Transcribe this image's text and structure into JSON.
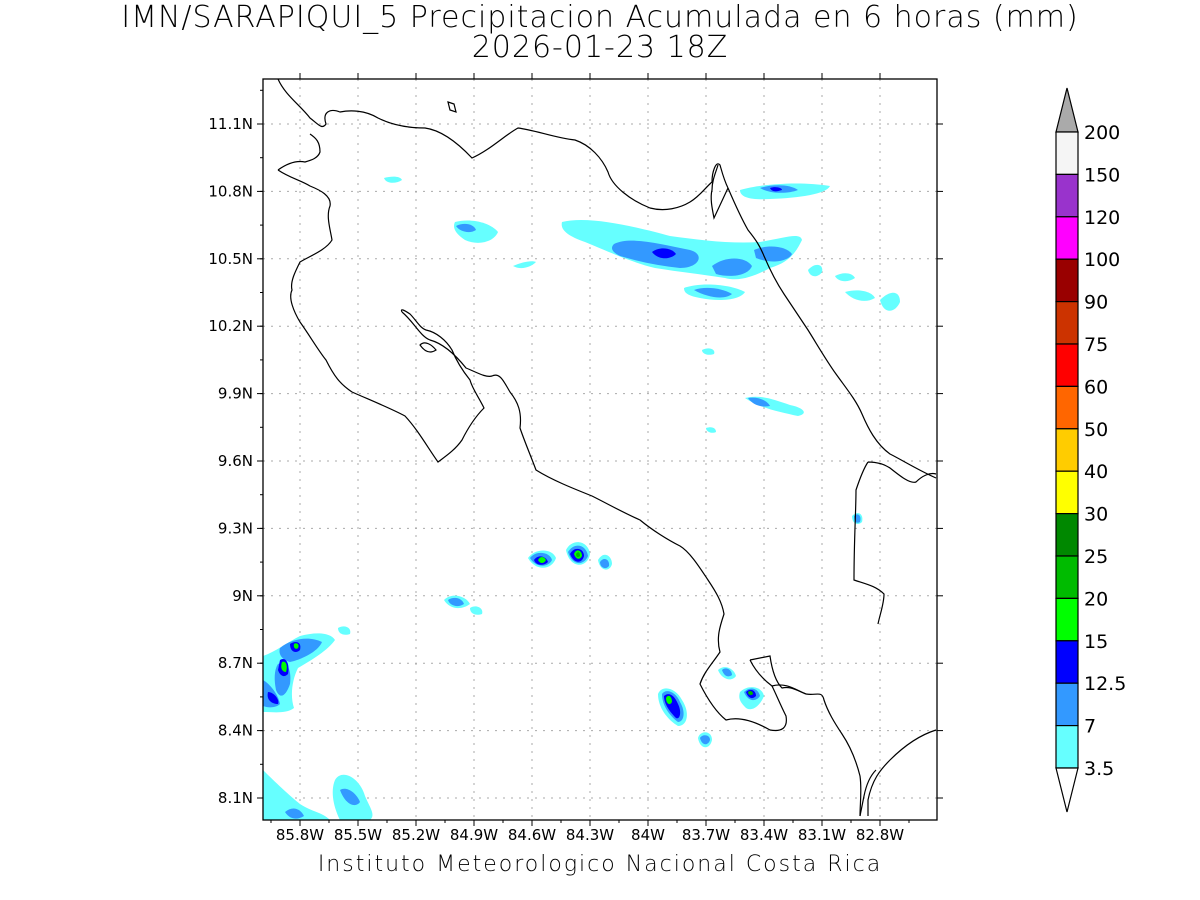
{
  "title_line1": "IMN/SARAPIQUI_5 Precipitacion Acumulada en 6 horas (mm)",
  "title_line2": "2026-01-23 18Z",
  "footer": "Instituto Meteorologico Nacional Costa Rica",
  "lat_ticks": [
    "11.1N",
    "10.8N",
    "10.5N",
    "10.2N",
    "9.9N",
    "9.6N",
    "9.3N",
    "9N",
    "8.7N",
    "8.4N",
    "8.1N"
  ],
  "lon_ticks": [
    "85.8W",
    "85.5W",
    "85.2W",
    "84.9W",
    "84.6W",
    "84.3W",
    "84W",
    "83.7W",
    "83.4W",
    "83.1W",
    "82.8W"
  ],
  "colorbar": {
    "labels": [
      "200",
      "150",
      "120",
      "100",
      "90",
      "75",
      "60",
      "50",
      "40",
      "30",
      "25",
      "20",
      "15",
      "12.5",
      "7",
      "3.5"
    ],
    "colors": [
      "#f5f5f5",
      "#9933cc",
      "#ff00ff",
      "#990000",
      "#cc3300",
      "#ff0000",
      "#ff6600",
      "#ffcc00",
      "#ffff00",
      "#008800",
      "#00bb00",
      "#00ff00",
      "#0000ff",
      "#3399ff",
      "#66ffff"
    ],
    "over_color": "#aaaaaa",
    "under_color": "#ffffff"
  },
  "precip_colors": {
    "c35": "#66ffff",
    "c7": "#3399ff",
    "c125": "#0000ff",
    "c15": "#00ff00",
    "c20": "#00bb00"
  }
}
